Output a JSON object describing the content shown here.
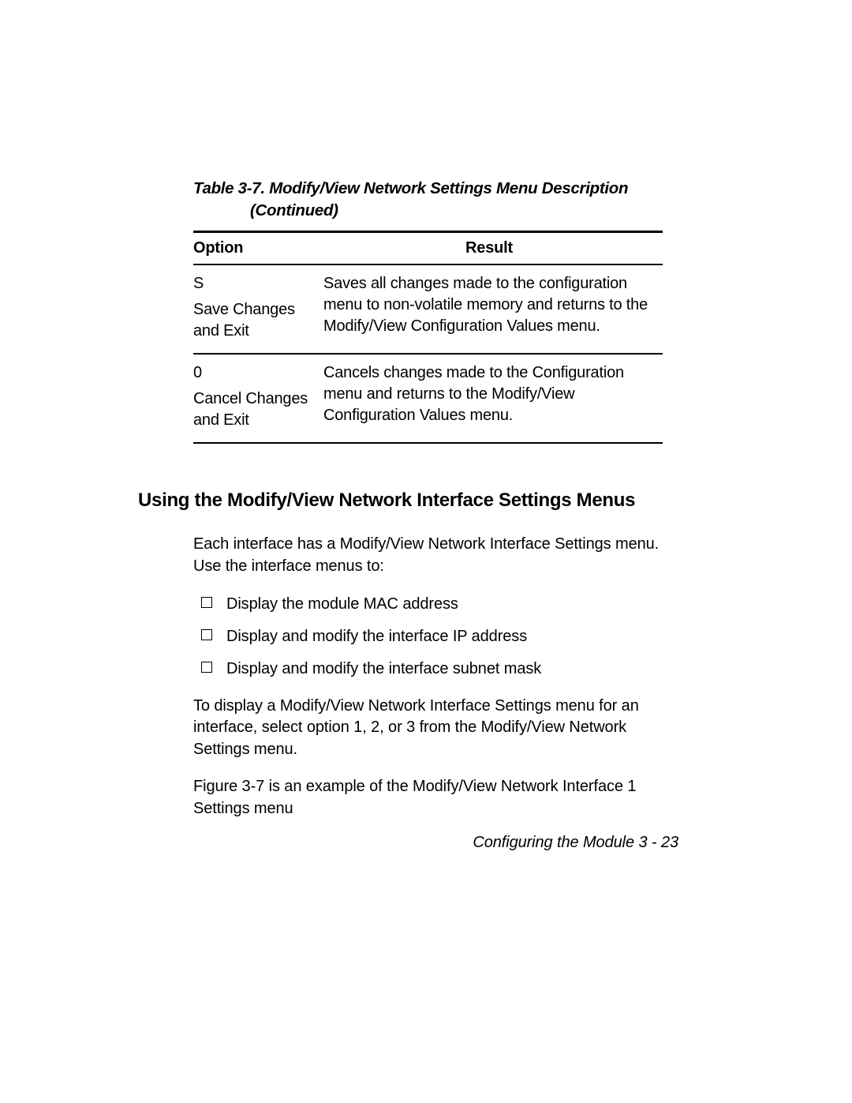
{
  "table": {
    "caption_main": "Table 3-7.  Modify/View Network Settings Menu Description",
    "caption_contd": "(Continued)",
    "headers": {
      "option": "Option",
      "result": "Result"
    },
    "rows": [
      {
        "key": "S",
        "label": "Save Changes and Exit",
        "result": "Saves all changes made to the configuration menu to non-volatile memory and returns to the Modify/View Configuration Values menu."
      },
      {
        "key": "0",
        "label": "Cancel Changes and Exit",
        "result": "Cancels changes made to the Configuration menu and returns to the Modify/View Configuration Values menu."
      }
    ]
  },
  "heading": "Using the Modify/View Network Interface Settings Menus",
  "para1": "Each interface has a Modify/View Network Interface Settings menu. Use the interface menus to:",
  "bullets": [
    "Display the module MAC address",
    "Display and modify the interface IP address",
    "Display and modify the interface subnet mask"
  ],
  "para2": "To display a Modify/View Network Interface Settings menu for an interface, select option 1, 2, or 3 from the Modify/View Network Settings menu.",
  "para3": "Figure 3-7 is an example of the Modify/View Network Interface 1 Settings menu",
  "footer": "Configuring the Module   3 - 23"
}
